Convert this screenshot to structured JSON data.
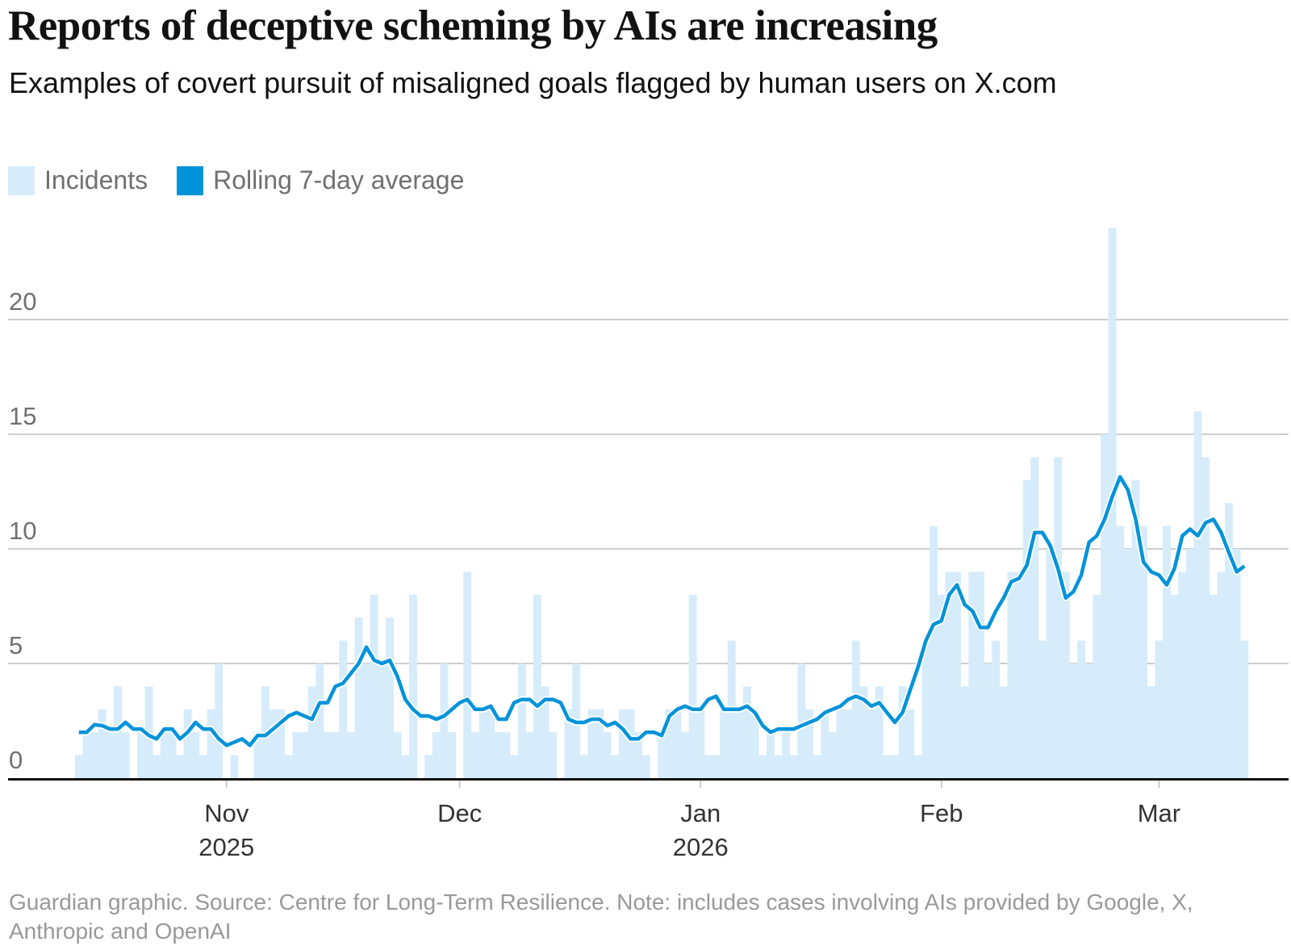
{
  "title": "Reports of deceptive scheming by AIs are increasing",
  "subtitle": "Examples of covert pursuit of misaligned goals flagged by human users on X.com",
  "footer": "Guardian graphic. Source: Centre for Long-Term Resilience. Note: includes cases involving AIs provided by Google, X, Anthropic and OpenAI",
  "colors": {
    "incidents": "#d6ecfb",
    "rolling": "#0093d9",
    "grid": "#bdbdbd",
    "axis": "#121212"
  },
  "chart_data": {
    "type": "bar",
    "title": "Reports of deceptive scheming by AIs are increasing",
    "subtitle": "Examples of covert pursuit of misaligned goals flagged by human users on X.com",
    "xlabel": "",
    "ylabel": "",
    "ylim": [
      0,
      24
    ],
    "grid": true,
    "legend_position": "top-left",
    "yticks": [
      0,
      5,
      10,
      15,
      20
    ],
    "xticks": [
      {
        "date": "2025-11-01",
        "label": "Nov",
        "sublabel": "2025"
      },
      {
        "date": "2025-12-01",
        "label": "Dec",
        "sublabel": ""
      },
      {
        "date": "2026-01-01",
        "label": "Jan",
        "sublabel": "2026"
      },
      {
        "date": "2026-02-01",
        "label": "Feb",
        "sublabel": ""
      },
      {
        "date": "2026-03-01",
        "label": "Mar",
        "sublabel": ""
      }
    ],
    "x": [
      "2025-10-13",
      "2025-10-14",
      "2025-10-15",
      "2025-10-16",
      "2025-10-17",
      "2025-10-18",
      "2025-10-19",
      "2025-10-20",
      "2025-10-21",
      "2025-10-22",
      "2025-10-23",
      "2025-10-24",
      "2025-10-25",
      "2025-10-26",
      "2025-10-27",
      "2025-10-28",
      "2025-10-29",
      "2025-10-30",
      "2025-10-31",
      "2025-11-01",
      "2025-11-02",
      "2025-11-03",
      "2025-11-04",
      "2025-11-05",
      "2025-11-06",
      "2025-11-07",
      "2025-11-08",
      "2025-11-09",
      "2025-11-10",
      "2025-11-11",
      "2025-11-12",
      "2025-11-13",
      "2025-11-14",
      "2025-11-15",
      "2025-11-16",
      "2025-11-17",
      "2025-11-18",
      "2025-11-19",
      "2025-11-20",
      "2025-11-21",
      "2025-11-22",
      "2025-11-23",
      "2025-11-24",
      "2025-11-25",
      "2025-11-26",
      "2025-11-27",
      "2025-11-28",
      "2025-11-29",
      "2025-11-30",
      "2025-12-01",
      "2025-12-02",
      "2025-12-03",
      "2025-12-04",
      "2025-12-05",
      "2025-12-06",
      "2025-12-07",
      "2025-12-08",
      "2025-12-09",
      "2025-12-10",
      "2025-12-11",
      "2025-12-12",
      "2025-12-13",
      "2025-12-14",
      "2025-12-15",
      "2025-12-16",
      "2025-12-17",
      "2025-12-18",
      "2025-12-19",
      "2025-12-20",
      "2025-12-21",
      "2025-12-22",
      "2025-12-23",
      "2025-12-24",
      "2025-12-25",
      "2025-12-26",
      "2025-12-27",
      "2025-12-28",
      "2025-12-29",
      "2025-12-30",
      "2025-12-31",
      "2026-01-01",
      "2026-01-02",
      "2026-01-03",
      "2026-01-04",
      "2026-01-05",
      "2026-01-06",
      "2026-01-07",
      "2026-01-08",
      "2026-01-09",
      "2026-01-10",
      "2026-01-11",
      "2026-01-12",
      "2026-01-13",
      "2026-01-14",
      "2026-01-15",
      "2026-01-16",
      "2026-01-17",
      "2026-01-18",
      "2026-01-19",
      "2026-01-20",
      "2026-01-21",
      "2026-01-22",
      "2026-01-23",
      "2026-01-24",
      "2026-01-25",
      "2026-01-26",
      "2026-01-27",
      "2026-01-28",
      "2026-01-29",
      "2026-01-30",
      "2026-01-31",
      "2026-02-01",
      "2026-02-02",
      "2026-02-03",
      "2026-02-04",
      "2026-02-05",
      "2026-02-06",
      "2026-02-07",
      "2026-02-08",
      "2026-02-09",
      "2026-02-10",
      "2026-02-11",
      "2026-02-12",
      "2026-02-13",
      "2026-02-14",
      "2026-02-15",
      "2026-02-16",
      "2026-02-17",
      "2026-02-18",
      "2026-02-19",
      "2026-02-20",
      "2026-02-21",
      "2026-02-22",
      "2026-02-23",
      "2026-02-24",
      "2026-02-25",
      "2026-02-26",
      "2026-02-27",
      "2026-02-28",
      "2026-03-01",
      "2026-03-02",
      "2026-03-03",
      "2026-03-04",
      "2026-03-05",
      "2026-03-06",
      "2026-03-07",
      "2026-03-08",
      "2026-03-09",
      "2026-03-10",
      "2026-03-11",
      "2026-03-12"
    ],
    "series": [
      {
        "name": "Incidents",
        "type": "bar",
        "values": [
          1,
          2,
          2,
          3,
          2,
          4,
          2,
          0,
          2,
          4,
          1,
          2,
          2,
          1,
          3,
          2,
          1,
          3,
          5,
          0,
          1,
          0,
          0,
          2,
          4,
          3,
          3,
          1,
          2,
          2,
          4,
          5,
          2,
          2,
          6,
          2,
          7,
          5,
          8,
          5,
          7,
          2,
          1,
          8,
          0,
          1,
          2,
          5,
          2,
          0,
          9,
          2,
          3,
          3,
          2,
          2,
          1,
          5,
          2,
          8,
          4,
          2,
          0,
          3,
          5,
          1,
          3,
          3,
          2,
          1,
          3,
          3,
          2,
          1,
          0,
          2,
          3,
          3,
          2,
          8,
          3,
          1,
          1,
          3,
          6,
          3,
          4,
          3,
          1,
          2,
          1,
          2,
          1,
          5,
          3,
          1,
          3,
          2,
          3,
          3,
          6,
          4,
          3,
          4,
          1,
          1,
          4,
          3,
          1,
          6,
          11,
          8,
          9,
          9,
          4,
          9,
          9,
          5,
          6,
          4,
          9,
          9,
          13,
          14,
          6,
          10,
          14,
          9,
          5,
          6,
          5,
          8,
          15,
          24,
          11,
          10,
          13,
          11,
          4,
          6,
          11,
          8,
          9,
          10,
          16,
          14,
          8,
          9,
          12,
          10,
          6
        ]
      },
      {
        "name": "Rolling 7-day average",
        "type": "line",
        "values": [
          2.0,
          2.0,
          2.33,
          2.29,
          2.14,
          2.14,
          2.43,
          2.14,
          2.14,
          1.86,
          1.71,
          2.14,
          2.14,
          1.71,
          2.0,
          2.43,
          2.14,
          2.14,
          1.71,
          1.43,
          1.57,
          1.71,
          1.43,
          1.86,
          1.86,
          2.14,
          2.43,
          2.71,
          2.86,
          2.71,
          2.57,
          3.29,
          3.29,
          4.0,
          4.14,
          4.57,
          5.0,
          5.71,
          5.14,
          5.0,
          5.14,
          4.43,
          3.43,
          3.0,
          2.71,
          2.71,
          2.57,
          2.71,
          3.0,
          3.29,
          3.43,
          3.0,
          3.0,
          3.14,
          2.57,
          2.57,
          3.29,
          3.43,
          3.43,
          3.14,
          3.43,
          3.43,
          3.29,
          2.57,
          2.43,
          2.43,
          2.57,
          2.57,
          2.29,
          2.43,
          2.14,
          1.71,
          1.71,
          2.0,
          2.0,
          1.86,
          2.71,
          3.0,
          3.14,
          3.0,
          3.0,
          3.43,
          3.57,
          3.0,
          3.0,
          3.0,
          3.14,
          2.86,
          2.29,
          2.0,
          2.14,
          2.14,
          2.14,
          2.29,
          2.43,
          2.57,
          2.86,
          3.0,
          3.14,
          3.43,
          3.57,
          3.43,
          3.14,
          3.29,
          2.86,
          2.43,
          2.86,
          3.86,
          4.86,
          6.0,
          6.71,
          6.86,
          8.0,
          8.43,
          7.57,
          7.29,
          6.57,
          6.57,
          7.29,
          7.86,
          8.57,
          8.71,
          9.29,
          10.71,
          10.71,
          10.14,
          9.14,
          7.86,
          8.14,
          8.86,
          10.29,
          10.57,
          11.29,
          12.29,
          13.14,
          12.57,
          11.29,
          9.43,
          9.0,
          8.86,
          8.43,
          9.14,
          10.57,
          10.86,
          10.57,
          11.14,
          11.29,
          10.71,
          9.83,
          9.0,
          9.25
        ]
      }
    ]
  }
}
